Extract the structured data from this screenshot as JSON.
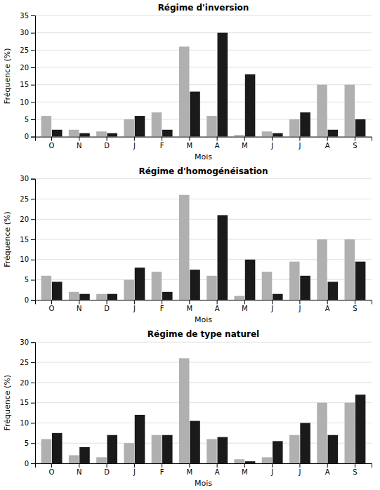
{
  "chart_data": [
    {
      "type": "bar",
      "title": "Régime d'inversion",
      "categories": [
        "O",
        "N",
        "D",
        "J",
        "F",
        "M",
        "A",
        "M",
        "J",
        "J",
        "A",
        "S"
      ],
      "series": [
        {
          "color": "#b0b0b0",
          "values": [
            6,
            2,
            1.5,
            5,
            7,
            26,
            6,
            0.5,
            1.5,
            5,
            15,
            15
          ]
        },
        {
          "color": "#1a1a1a",
          "values": [
            2,
            1,
            1,
            6,
            2,
            13,
            30,
            18,
            1,
            7,
            2,
            5
          ]
        }
      ],
      "xlabel": "Mois",
      "ylabel": "Fréquence (%)",
      "ylim": [
        0,
        35
      ],
      "yticks": [
        0,
        5,
        10,
        15,
        20,
        25,
        30,
        35
      ],
      "grid": true
    },
    {
      "type": "bar",
      "title": "Régime d'homogénéisation",
      "categories": [
        "O",
        "N",
        "D",
        "J",
        "F",
        "M",
        "A",
        "M",
        "J",
        "J",
        "A",
        "S"
      ],
      "series": [
        {
          "color": "#b0b0b0",
          "values": [
            6,
            2,
            1.5,
            5,
            7,
            26,
            6,
            1,
            7,
            9.5,
            15,
            15
          ]
        },
        {
          "color": "#1a1a1a",
          "values": [
            4.5,
            1.5,
            1.5,
            8,
            2,
            7.5,
            21,
            10,
            1.5,
            6,
            4.5,
            9.5
          ]
        }
      ],
      "xlabel": "Mois",
      "ylabel": "Fréquence (%)",
      "ylim": [
        0,
        30
      ],
      "yticks": [
        0,
        5,
        10,
        15,
        20,
        25,
        30
      ],
      "grid": true
    },
    {
      "type": "bar",
      "title": "Régime de type naturel",
      "categories": [
        "O",
        "N",
        "D",
        "J",
        "F",
        "M",
        "A",
        "M",
        "J",
        "J",
        "A",
        "S"
      ],
      "series": [
        {
          "color": "#b0b0b0",
          "values": [
            6,
            2,
            1.5,
            5,
            7,
            26,
            6,
            1,
            1.5,
            7,
            15,
            15
          ]
        },
        {
          "color": "#1a1a1a",
          "values": [
            7.5,
            4,
            7,
            12,
            7,
            10.5,
            6.5,
            0.5,
            5.5,
            10,
            7,
            17
          ]
        }
      ],
      "xlabel": "Mois",
      "ylabel": "Fréquence (%)",
      "ylim": [
        0,
        30
      ],
      "yticks": [
        0,
        5,
        10,
        15,
        20,
        25,
        30
      ],
      "grid": true
    }
  ]
}
